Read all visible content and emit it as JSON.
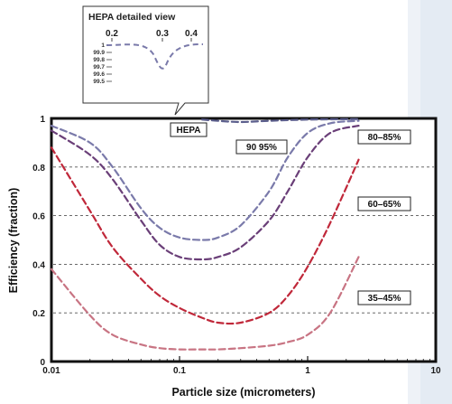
{
  "chart_data": {
    "type": "line",
    "title": "",
    "xlabel": "Particle size (micrometers)",
    "ylabel": "Efficiency (fraction)",
    "xscale": "log",
    "xlim": [
      0.01,
      10
    ],
    "ylim": [
      0,
      1
    ],
    "x_ticks": [
      "0.01",
      "0.1",
      "1",
      "10"
    ],
    "y_ticks": [
      "0",
      "0.2",
      "0.4",
      "0.6",
      "0.8",
      "1"
    ],
    "grid": "horizontal dashed at 0.2, 0.4, 0.6, 0.8",
    "series": [
      {
        "name": "HEPA",
        "color": "#5b5e8c",
        "x": [
          0.15,
          0.2,
          0.3,
          0.5,
          1,
          2.5
        ],
        "y": [
          0.995,
          0.99,
          0.985,
          0.99,
          0.995,
          0.997
        ]
      },
      {
        "name": "90–95%",
        "color": "#7a7aaa",
        "x": [
          0.01,
          0.02,
          0.03,
          0.05,
          0.07,
          0.1,
          0.15,
          0.2,
          0.3,
          0.5,
          0.7,
          1,
          1.5,
          2.5
        ],
        "y": [
          0.97,
          0.9,
          0.8,
          0.63,
          0.55,
          0.51,
          0.5,
          0.51,
          0.56,
          0.7,
          0.84,
          0.94,
          0.98,
          0.99
        ]
      },
      {
        "name": "80–85%",
        "color": "#6a3f78",
        "x": [
          0.01,
          0.02,
          0.03,
          0.05,
          0.07,
          0.1,
          0.15,
          0.2,
          0.3,
          0.5,
          0.7,
          1,
          1.5,
          2.5
        ],
        "y": [
          0.95,
          0.85,
          0.75,
          0.58,
          0.48,
          0.43,
          0.42,
          0.43,
          0.47,
          0.58,
          0.7,
          0.84,
          0.94,
          0.97
        ]
      },
      {
        "name": "60–65%",
        "color": "#c0283a",
        "x": [
          0.01,
          0.02,
          0.03,
          0.05,
          0.07,
          0.1,
          0.15,
          0.2,
          0.3,
          0.5,
          0.7,
          1,
          1.5,
          2.5
        ],
        "y": [
          0.88,
          0.62,
          0.47,
          0.34,
          0.27,
          0.22,
          0.18,
          0.16,
          0.16,
          0.2,
          0.27,
          0.39,
          0.57,
          0.83
        ]
      },
      {
        "name": "35–45%",
        "color": "#c87483",
        "x": [
          0.01,
          0.02,
          0.03,
          0.05,
          0.07,
          0.1,
          0.15,
          0.2,
          0.3,
          0.5,
          0.7,
          1,
          1.5,
          2.5
        ],
        "y": [
          0.38,
          0.19,
          0.11,
          0.07,
          0.055,
          0.05,
          0.05,
          0.05,
          0.055,
          0.065,
          0.08,
          0.11,
          0.2,
          0.43
        ]
      }
    ],
    "annotations": [
      {
        "text": "HEPA",
        "series": 0
      },
      {
        "text": "90 95%",
        "series": 1
      },
      {
        "text": "80–85%",
        "series": 2
      },
      {
        "text": "60–65%",
        "series": 3
      },
      {
        "text": "35–45%",
        "series": 4
      }
    ],
    "inset": {
      "title": "HEPA detailed view",
      "x_ticks": [
        "0.2",
        "0.3",
        "0.4"
      ],
      "y_ticks": [
        "1",
        "99.9",
        "99.8",
        "99.7",
        "99.6",
        "99.5"
      ]
    }
  }
}
